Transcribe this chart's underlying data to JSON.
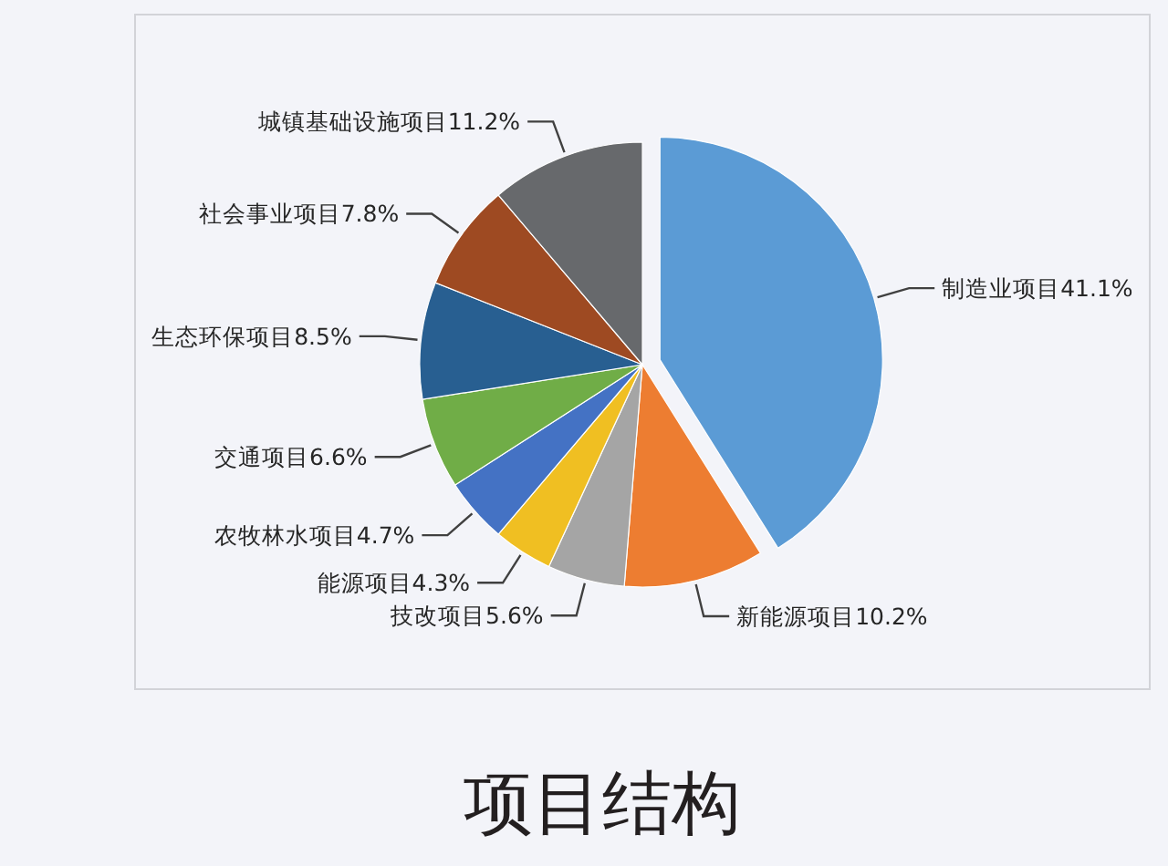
{
  "chart_data": {
    "type": "pie",
    "title": "项目结构",
    "categories": [
      "制造业项目",
      "新能源项目",
      "技改项目",
      "能源项目",
      "农牧林水项目",
      "交通项目",
      "生态环保项目",
      "社会事业项目",
      "城镇基础设施项目"
    ],
    "values": [
      41.1,
      10.2,
      5.6,
      4.3,
      4.7,
      6.6,
      8.5,
      7.8,
      11.2
    ],
    "value_labels": [
      "41.1%",
      "10.2%",
      "5.6%",
      "4.3%",
      "4.7%",
      "6.6%",
      "8.5%",
      "7.8%",
      "11.2%"
    ],
    "colors": [
      "#5b9bd5",
      "#ed7d31",
      "#a5a5a5",
      "#f0bf22",
      "#4472c4",
      "#70ad47",
      "#285f91",
      "#9e4a22",
      "#67696c"
    ]
  }
}
